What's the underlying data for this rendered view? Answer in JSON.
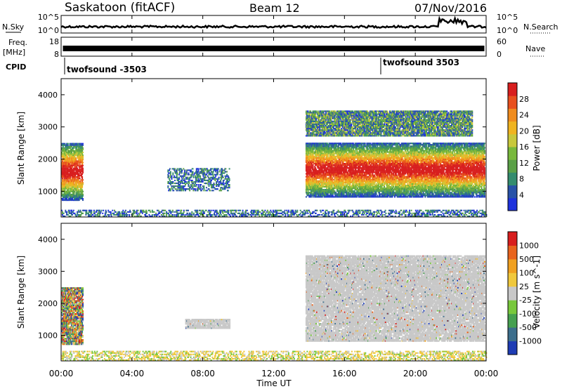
{
  "header": {
    "station": "Saskatoon (fitACF)",
    "beam": "Beam 12",
    "date": "07/Nov/2016"
  },
  "noise_panel": {
    "left_label": "N.Sky",
    "right_label": "N.Search",
    "left_ticks": [
      "10^5",
      "10^0"
    ],
    "right_ticks": [
      "10^5",
      "10^0"
    ]
  },
  "freq_panel": {
    "left_label_1": "Freq.",
    "left_label_2": "[MHz]",
    "right_label": "Nave",
    "left_ticks": [
      "18",
      "8"
    ],
    "right_ticks": [
      "60",
      "0"
    ]
  },
  "cpid_panel": {
    "label": "CPID",
    "modes": [
      {
        "name": "twofsound -3503",
        "start_hour": 0
      },
      {
        "name": "twofsound 3503",
        "start_hour": 18
      }
    ]
  },
  "chart_data": [
    {
      "type": "heatmap",
      "panel": "power",
      "ylabel": "Slant Range [km]",
      "xlabel": "Time UT",
      "ylim": [
        200,
        4500
      ],
      "xlim_hours": [
        0,
        24
      ],
      "y_ticks": [
        "1000",
        "2000",
        "3000",
        "4000"
      ],
      "x_ticks": [
        "00:00",
        "04:00",
        "08:00",
        "12:00",
        "16:00",
        "20:00",
        "00:00"
      ],
      "colorbar": {
        "label": "Power [dB]",
        "ticks": [
          "4",
          "8",
          "12",
          "16",
          "20",
          "24",
          "28"
        ],
        "colors": [
          "#1e32dc",
          "#2852a8",
          "#348c6e",
          "#5aa046",
          "#78b83c",
          "#c8c83c",
          "#f0b420",
          "#f08c1e",
          "#e8501e",
          "#d81e1e"
        ]
      },
      "regions": [
        {
          "t0": 0.0,
          "t1": 1.2,
          "r0": 700,
          "r1": 2500,
          "intensity": "high"
        },
        {
          "t0": 13.8,
          "t1": 23.9,
          "r0": 800,
          "r1": 2500,
          "intensity": "high"
        },
        {
          "t0": 13.8,
          "t1": 23.2,
          "r0": 2700,
          "r1": 3500,
          "intensity": "medium"
        },
        {
          "t0": 6.0,
          "t1": 9.5,
          "r0": 1000,
          "r1": 1700,
          "intensity": "low"
        },
        {
          "t0": 0.0,
          "t1": 24.0,
          "r0": 200,
          "r1": 400,
          "intensity": "low"
        }
      ]
    },
    {
      "type": "heatmap",
      "panel": "velocity",
      "ylabel": "Slant Range [km]",
      "xlabel": "Time UT",
      "ylim": [
        200,
        4500
      ],
      "xlim_hours": [
        0,
        24
      ],
      "y_ticks": [
        "1000",
        "2000",
        "3000",
        "4000"
      ],
      "x_ticks": [
        "00:00",
        "04:00",
        "08:00",
        "12:00",
        "16:00",
        "20:00",
        "00:00"
      ],
      "colorbar": {
        "label": "Velocity [m s^-1]",
        "ticks": [
          "1000",
          "500",
          "100",
          "25",
          "-25",
          "-100",
          "-500",
          "-1000"
        ],
        "colors": [
          "#1e3cb4",
          "#3c6e8c",
          "#46a050",
          "#78c83c",
          "#c8c8c8",
          "#f0c83c",
          "#f0a020",
          "#e8641e",
          "#d81e1e"
        ]
      },
      "regions": [
        {
          "t0": 0.0,
          "t1": 1.2,
          "r0": 700,
          "r1": 2500,
          "class": "mixed"
        },
        {
          "t0": 13.8,
          "t1": 23.9,
          "r0": 800,
          "r1": 3500,
          "class": "ground-scatter"
        },
        {
          "t0": 7.0,
          "t1": 9.5,
          "r0": 1200,
          "r1": 1500,
          "class": "ground-scatter"
        },
        {
          "t0": 0.0,
          "t1": 24.0,
          "r0": 200,
          "r1": 500,
          "class": "low-velocity"
        }
      ]
    }
  ]
}
